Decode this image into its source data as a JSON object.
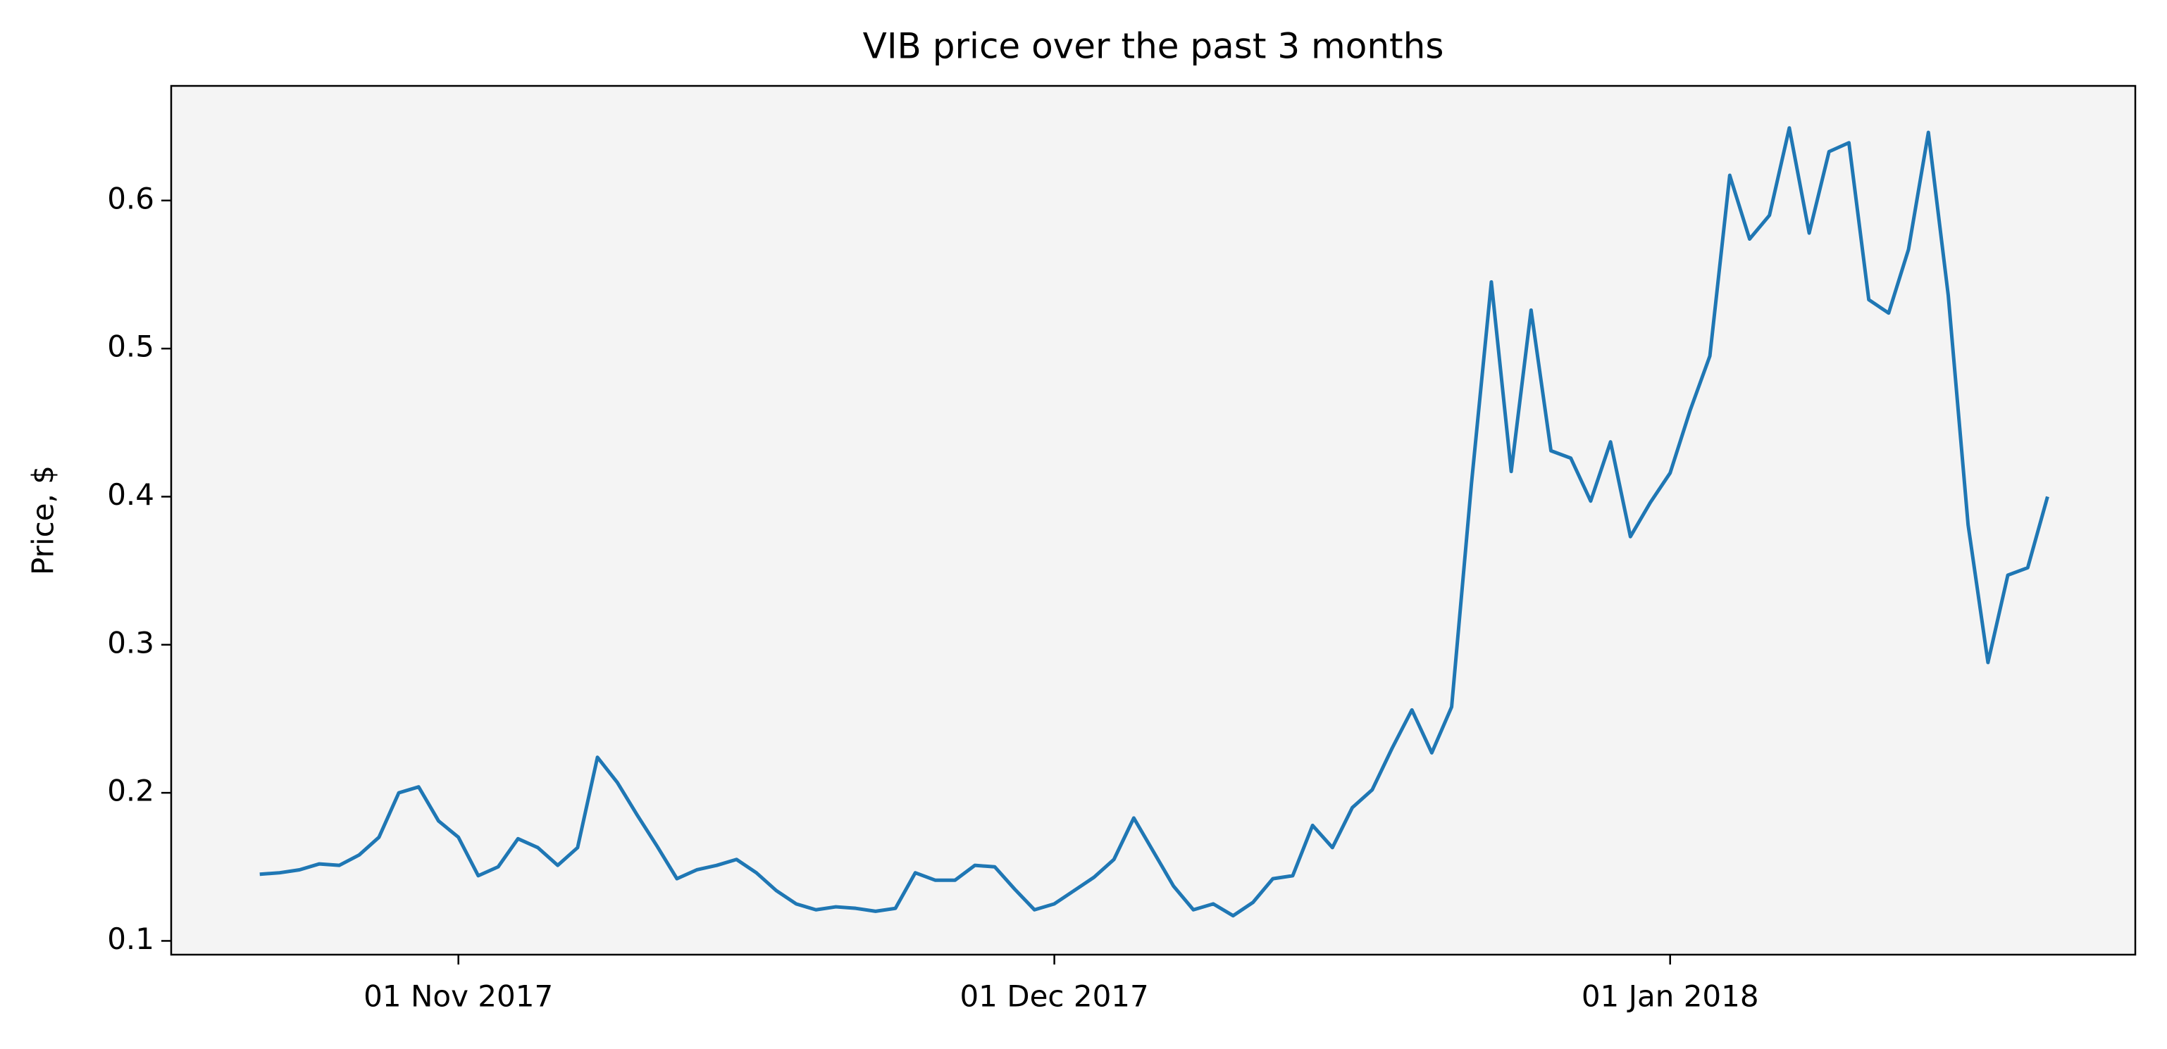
{
  "chart_data": {
    "type": "line",
    "title": "VIB price over the past 3 months",
    "ylabel": "Price, $",
    "x": [
      "2017-10-22",
      "2017-10-23",
      "2017-10-24",
      "2017-10-25",
      "2017-10-26",
      "2017-10-27",
      "2017-10-28",
      "2017-10-29",
      "2017-10-30",
      "2017-10-31",
      "2017-11-01",
      "2017-11-02",
      "2017-11-03",
      "2017-11-04",
      "2017-11-05",
      "2017-11-06",
      "2017-11-07",
      "2017-11-08",
      "2017-11-09",
      "2017-11-10",
      "2017-11-11",
      "2017-11-12",
      "2017-11-13",
      "2017-11-14",
      "2017-11-15",
      "2017-11-16",
      "2017-11-17",
      "2017-11-18",
      "2017-11-19",
      "2017-11-20",
      "2017-11-21",
      "2017-11-22",
      "2017-11-23",
      "2017-11-24",
      "2017-11-25",
      "2017-11-26",
      "2017-11-27",
      "2017-11-28",
      "2017-11-29",
      "2017-11-30",
      "2017-12-01",
      "2017-12-02",
      "2017-12-03",
      "2017-12-04",
      "2017-12-05",
      "2017-12-06",
      "2017-12-07",
      "2017-12-08",
      "2017-12-09",
      "2017-12-10",
      "2017-12-11",
      "2017-12-12",
      "2017-12-13",
      "2017-12-14",
      "2017-12-15",
      "2017-12-16",
      "2017-12-17",
      "2017-12-18",
      "2017-12-19",
      "2017-12-20",
      "2017-12-21",
      "2017-12-22",
      "2017-12-23",
      "2017-12-24",
      "2017-12-25",
      "2017-12-26",
      "2017-12-27",
      "2017-12-28",
      "2017-12-29",
      "2017-12-30",
      "2017-12-31",
      "2018-01-01",
      "2018-01-02",
      "2018-01-03",
      "2018-01-04",
      "2018-01-05",
      "2018-01-06",
      "2018-01-07",
      "2018-01-08",
      "2018-01-09",
      "2018-01-10",
      "2018-01-11",
      "2018-01-12",
      "2018-01-13",
      "2018-01-14",
      "2018-01-15",
      "2018-01-16",
      "2018-01-17",
      "2018-01-18",
      "2018-01-19",
      "2018-01-20"
    ],
    "series": [
      {
        "color": "#1f77b4",
        "values": [
          0.145,
          0.146,
          0.148,
          0.152,
          0.151,
          0.158,
          0.17,
          0.2,
          0.204,
          0.181,
          0.17,
          0.144,
          0.15,
          0.169,
          0.163,
          0.151,
          0.163,
          0.224,
          0.207,
          0.185,
          0.164,
          0.142,
          0.148,
          0.151,
          0.155,
          0.146,
          0.134,
          0.125,
          0.121,
          0.123,
          0.122,
          0.12,
          0.122,
          0.146,
          0.141,
          0.141,
          0.151,
          0.15,
          0.135,
          0.121,
          0.125,
          0.134,
          0.143,
          0.155,
          0.183,
          0.16,
          0.137,
          0.121,
          0.125,
          0.117,
          0.126,
          0.142,
          0.144,
          0.178,
          0.163,
          0.19,
          0.202,
          0.23,
          0.256,
          0.227,
          0.258,
          0.409,
          0.545,
          0.417,
          0.526,
          0.431,
          0.426,
          0.397,
          0.437,
          0.373,
          0.396,
          0.416,
          0.458,
          0.495,
          0.617,
          0.574,
          0.59,
          0.649,
          0.578,
          0.633,
          0.639,
          0.533,
          0.524,
          0.567,
          0.646,
          0.536,
          0.381,
          0.288,
          0.347,
          0.352,
          0.4
        ]
      }
    ],
    "xlim": [
      "2017-10-17T13:00",
      "2018-01-24T10:00"
    ],
    "xticks": [
      {
        "value": "2017-11-01",
        "label": "01 Nov 2017"
      },
      {
        "value": "2017-12-01",
        "label": "01 Dec 2017"
      },
      {
        "value": "2018-01-01",
        "label": "01 Jan 2018"
      }
    ],
    "ylim": [
      0.0907,
      0.6774
    ],
    "yticks": [
      0.1,
      0.2,
      0.3,
      0.4,
      0.5,
      0.6
    ],
    "background": "#f4f4f4",
    "grid": false
  }
}
